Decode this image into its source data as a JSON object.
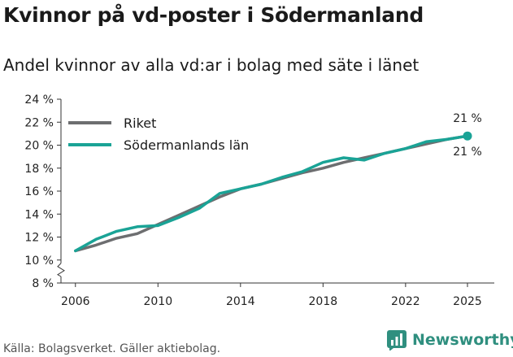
{
  "header": {
    "title": "Kvinnor på vd-poster i Södermanland",
    "subtitle": "Andel kvinnor av alla vd:ar i bolag med säte i länet"
  },
  "footer": {
    "source": "Källa: Bolagsverket. Gäller aktiebolag.",
    "brand": "Newsworthy",
    "brand_icon": "bar-chart-icon"
  },
  "colors": {
    "riket": "#6d6e70",
    "lan": "#1aa396",
    "brand": "#2f8f7f",
    "axis": "#333333"
  },
  "chart_data": {
    "type": "line",
    "title": "Kvinnor på vd-poster i Södermanland",
    "subtitle": "Andel kvinnor av alla vd:ar i bolag med säte i länet",
    "xlabel": "",
    "ylabel": "",
    "xlim": [
      2005.3,
      2026.3
    ],
    "ylim": [
      8,
      24
    ],
    "x_ticks": [
      2006,
      2010,
      2014,
      2018,
      2022,
      2025
    ],
    "x_tick_labels": [
      "2006",
      "2010",
      "2014",
      "2018",
      "2022",
      "2025"
    ],
    "y_ticks": [
      8,
      10,
      12,
      14,
      16,
      18,
      20,
      22,
      24
    ],
    "y_tick_labels": [
      "8 %",
      "10 %",
      "12 %",
      "14 %",
      "16 %",
      "18 %",
      "20 %",
      "22 %",
      "24 %"
    ],
    "axis_break": true,
    "grid": false,
    "legend_position": "top-left",
    "x": [
      2006,
      2007,
      2008,
      2009,
      2010,
      2011,
      2012,
      2013,
      2014,
      2015,
      2016,
      2017,
      2018,
      2019,
      2020,
      2021,
      2022,
      2023,
      2024,
      2025
    ],
    "series": [
      {
        "name": "Riket",
        "color": "#6d6e70",
        "values": [
          10.8,
          11.3,
          11.9,
          12.3,
          13.1,
          13.9,
          14.7,
          15.5,
          16.2,
          16.6,
          17.1,
          17.6,
          18.0,
          18.5,
          18.9,
          19.3,
          19.7,
          20.1,
          20.5,
          20.8
        ],
        "end_label": "21 %",
        "end_label_position": "above"
      },
      {
        "name": "Södermanlands län",
        "color": "#1aa396",
        "values": [
          10.8,
          11.8,
          12.5,
          12.9,
          13.0,
          13.7,
          14.5,
          15.8,
          16.2,
          16.6,
          17.2,
          17.7,
          18.5,
          18.9,
          18.7,
          19.3,
          19.7,
          20.3,
          20.5,
          20.8
        ],
        "end_label": "21 %",
        "end_label_position": "below"
      }
    ]
  }
}
